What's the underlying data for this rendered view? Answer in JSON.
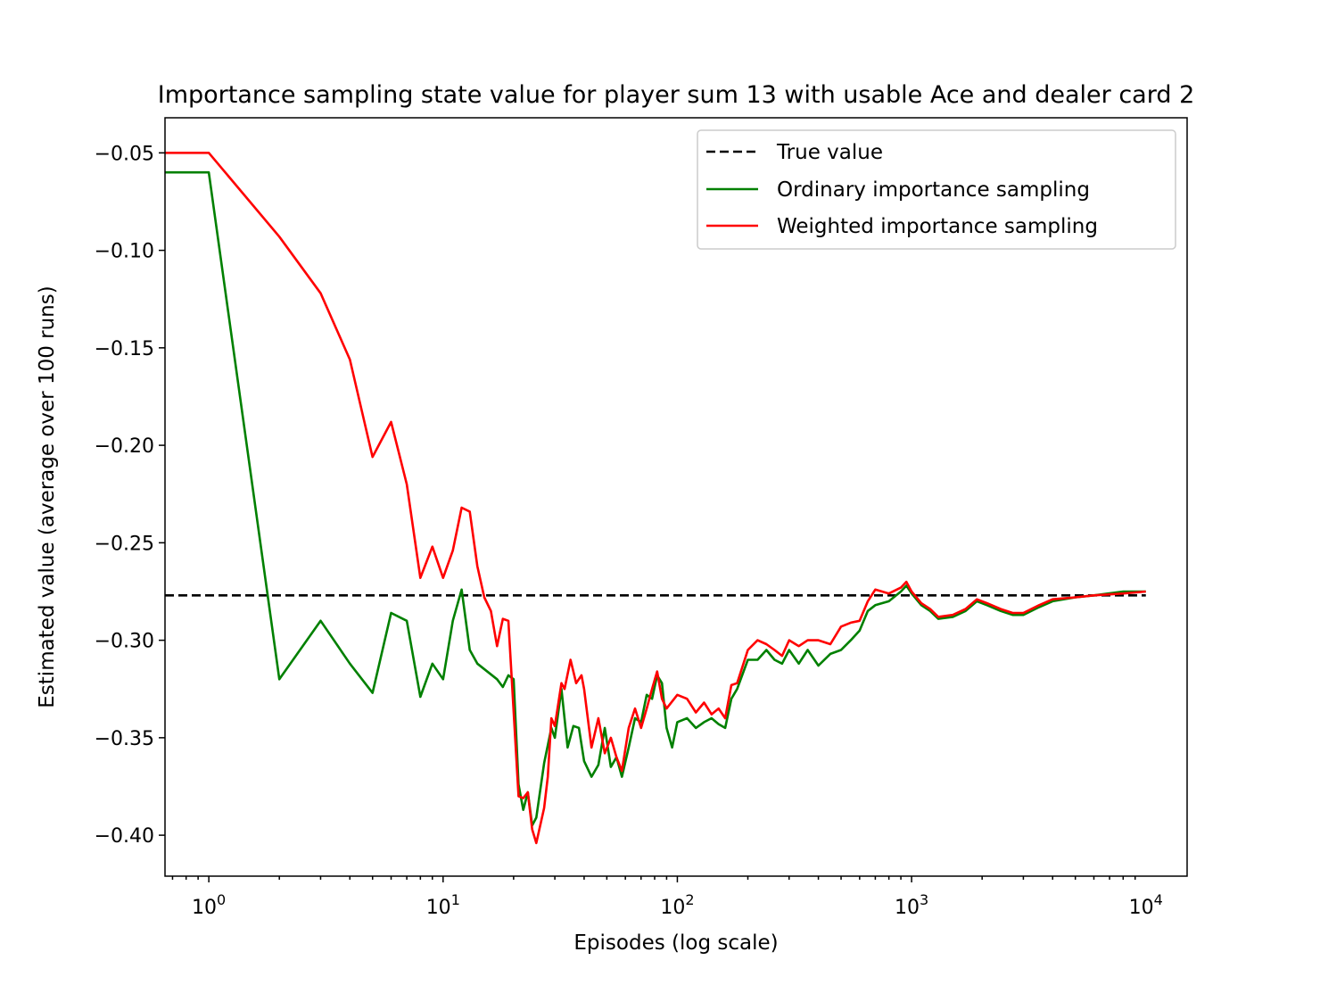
{
  "chart_data": {
    "type": "line",
    "title": "Importance sampling state value for player sum 13 with usable Ace and dealer card 2",
    "xlabel": "Episodes (log scale)",
    "ylabel": "Estimated value (average over 100 runs)",
    "xscale": "log",
    "xlim": [
      0.65,
      15000
    ],
    "ylim": [
      -0.421,
      -0.032
    ],
    "xticks": [
      {
        "value": 1,
        "base": "10",
        "exp": "0"
      },
      {
        "value": 10,
        "base": "10",
        "exp": "1"
      },
      {
        "value": 100,
        "base": "10",
        "exp": "2"
      },
      {
        "value": 1000,
        "base": "10",
        "exp": "3"
      },
      {
        "value": 10000,
        "base": "10",
        "exp": "4"
      }
    ],
    "yticks": [
      {
        "value": -0.05,
        "label": "−0.05"
      },
      {
        "value": -0.1,
        "label": "−0.10"
      },
      {
        "value": -0.15,
        "label": "−0.15"
      },
      {
        "value": -0.2,
        "label": "−0.20"
      },
      {
        "value": -0.25,
        "label": "−0.25"
      },
      {
        "value": -0.3,
        "label": "−0.30"
      },
      {
        "value": -0.35,
        "label": "−0.35"
      },
      {
        "value": -0.4,
        "label": "−0.40"
      }
    ],
    "grid": false,
    "legend_position": "top-right",
    "true_value": {
      "name": "True value",
      "value": -0.277,
      "color": "#000000",
      "style": "dashed"
    },
    "series": [
      {
        "name": "Ordinary importance sampling",
        "color": "#008000",
        "points": [
          [
            0.65,
            -0.06
          ],
          [
            1,
            -0.06
          ],
          [
            2,
            -0.32
          ],
          [
            3,
            -0.29
          ],
          [
            4,
            -0.312
          ],
          [
            5,
            -0.327
          ],
          [
            6,
            -0.286
          ],
          [
            7,
            -0.29
          ],
          [
            8,
            -0.329
          ],
          [
            9,
            -0.312
          ],
          [
            10,
            -0.32
          ],
          [
            11,
            -0.29
          ],
          [
            12,
            -0.274
          ],
          [
            13,
            -0.305
          ],
          [
            14,
            -0.312
          ],
          [
            17,
            -0.32
          ],
          [
            18,
            -0.324
          ],
          [
            19,
            -0.318
          ],
          [
            20,
            -0.32
          ],
          [
            21,
            -0.374
          ],
          [
            22,
            -0.387
          ],
          [
            23,
            -0.378
          ],
          [
            24,
            -0.395
          ],
          [
            25,
            -0.391
          ],
          [
            27,
            -0.363
          ],
          [
            29,
            -0.345
          ],
          [
            30,
            -0.35
          ],
          [
            32,
            -0.325
          ],
          [
            34,
            -0.355
          ],
          [
            36,
            -0.344
          ],
          [
            38,
            -0.345
          ],
          [
            40,
            -0.362
          ],
          [
            43,
            -0.37
          ],
          [
            46,
            -0.364
          ],
          [
            49,
            -0.345
          ],
          [
            52,
            -0.365
          ],
          [
            55,
            -0.36
          ],
          [
            58,
            -0.37
          ],
          [
            62,
            -0.355
          ],
          [
            66,
            -0.34
          ],
          [
            70,
            -0.342
          ],
          [
            74,
            -0.328
          ],
          [
            78,
            -0.33
          ],
          [
            82,
            -0.318
          ],
          [
            86,
            -0.322
          ],
          [
            90,
            -0.345
          ],
          [
            95,
            -0.355
          ],
          [
            100,
            -0.342
          ],
          [
            110,
            -0.34
          ],
          [
            120,
            -0.345
          ],
          [
            130,
            -0.342
          ],
          [
            140,
            -0.34
          ],
          [
            150,
            -0.343
          ],
          [
            160,
            -0.345
          ],
          [
            170,
            -0.33
          ],
          [
            180,
            -0.325
          ],
          [
            200,
            -0.31
          ],
          [
            220,
            -0.31
          ],
          [
            240,
            -0.305
          ],
          [
            260,
            -0.31
          ],
          [
            280,
            -0.312
          ],
          [
            300,
            -0.305
          ],
          [
            330,
            -0.312
          ],
          [
            360,
            -0.305
          ],
          [
            400,
            -0.313
          ],
          [
            450,
            -0.307
          ],
          [
            500,
            -0.305
          ],
          [
            550,
            -0.3
          ],
          [
            600,
            -0.295
          ],
          [
            650,
            -0.285
          ],
          [
            700,
            -0.282
          ],
          [
            800,
            -0.28
          ],
          [
            900,
            -0.275
          ],
          [
            950,
            -0.272
          ],
          [
            1000,
            -0.276
          ],
          [
            1100,
            -0.282
          ],
          [
            1200,
            -0.285
          ],
          [
            1300,
            -0.289
          ],
          [
            1500,
            -0.288
          ],
          [
            1700,
            -0.285
          ],
          [
            1900,
            -0.28
          ],
          [
            2100,
            -0.282
          ],
          [
            2400,
            -0.285
          ],
          [
            2700,
            -0.287
          ],
          [
            3000,
            -0.287
          ],
          [
            3500,
            -0.283
          ],
          [
            4000,
            -0.28
          ],
          [
            5000,
            -0.278
          ],
          [
            6000,
            -0.277
          ],
          [
            8000,
            -0.275
          ],
          [
            10000,
            -0.275
          ]
        ]
      },
      {
        "name": "Weighted importance sampling",
        "color": "#ff0000",
        "points": [
          [
            0.65,
            -0.05
          ],
          [
            1,
            -0.05
          ],
          [
            2,
            -0.093
          ],
          [
            3,
            -0.122
          ],
          [
            4,
            -0.156
          ],
          [
            5,
            -0.206
          ],
          [
            6,
            -0.188
          ],
          [
            7,
            -0.22
          ],
          [
            8,
            -0.268
          ],
          [
            9,
            -0.252
          ],
          [
            10,
            -0.268
          ],
          [
            11,
            -0.254
          ],
          [
            12,
            -0.232
          ],
          [
            13,
            -0.234
          ],
          [
            14,
            -0.262
          ],
          [
            15,
            -0.278
          ],
          [
            16,
            -0.285
          ],
          [
            17,
            -0.303
          ],
          [
            18,
            -0.289
          ],
          [
            19,
            -0.29
          ],
          [
            21,
            -0.38
          ],
          [
            22,
            -0.381
          ],
          [
            23,
            -0.378
          ],
          [
            24,
            -0.397
          ],
          [
            25,
            -0.404
          ],
          [
            27,
            -0.386
          ],
          [
            28,
            -0.37
          ],
          [
            29,
            -0.34
          ],
          [
            30,
            -0.344
          ],
          [
            32,
            -0.322
          ],
          [
            33,
            -0.325
          ],
          [
            35,
            -0.31
          ],
          [
            37,
            -0.322
          ],
          [
            39,
            -0.318
          ],
          [
            40,
            -0.325
          ],
          [
            43,
            -0.355
          ],
          [
            46,
            -0.34
          ],
          [
            49,
            -0.358
          ],
          [
            52,
            -0.35
          ],
          [
            55,
            -0.36
          ],
          [
            58,
            -0.367
          ],
          [
            62,
            -0.345
          ],
          [
            66,
            -0.335
          ],
          [
            70,
            -0.345
          ],
          [
            74,
            -0.335
          ],
          [
            78,
            -0.325
          ],
          [
            82,
            -0.316
          ],
          [
            86,
            -0.33
          ],
          [
            90,
            -0.335
          ],
          [
            100,
            -0.328
          ],
          [
            110,
            -0.33
          ],
          [
            120,
            -0.337
          ],
          [
            130,
            -0.332
          ],
          [
            140,
            -0.338
          ],
          [
            150,
            -0.335
          ],
          [
            160,
            -0.34
          ],
          [
            170,
            -0.323
          ],
          [
            180,
            -0.322
          ],
          [
            200,
            -0.305
          ],
          [
            220,
            -0.3
          ],
          [
            240,
            -0.302
          ],
          [
            260,
            -0.305
          ],
          [
            280,
            -0.308
          ],
          [
            300,
            -0.3
          ],
          [
            330,
            -0.303
          ],
          [
            360,
            -0.3
          ],
          [
            400,
            -0.3
          ],
          [
            450,
            -0.302
          ],
          [
            500,
            -0.293
          ],
          [
            550,
            -0.291
          ],
          [
            600,
            -0.29
          ],
          [
            650,
            -0.28
          ],
          [
            700,
            -0.274
          ],
          [
            800,
            -0.276
          ],
          [
            900,
            -0.273
          ],
          [
            950,
            -0.27
          ],
          [
            1000,
            -0.275
          ],
          [
            1100,
            -0.281
          ],
          [
            1200,
            -0.284
          ],
          [
            1300,
            -0.288
          ],
          [
            1500,
            -0.287
          ],
          [
            1700,
            -0.284
          ],
          [
            1900,
            -0.279
          ],
          [
            2100,
            -0.281
          ],
          [
            2400,
            -0.284
          ],
          [
            2700,
            -0.286
          ],
          [
            3000,
            -0.286
          ],
          [
            3500,
            -0.282
          ],
          [
            4000,
            -0.279
          ],
          [
            5000,
            -0.278
          ],
          [
            6000,
            -0.277
          ],
          [
            8000,
            -0.276
          ],
          [
            10000,
            -0.275
          ]
        ]
      }
    ]
  }
}
